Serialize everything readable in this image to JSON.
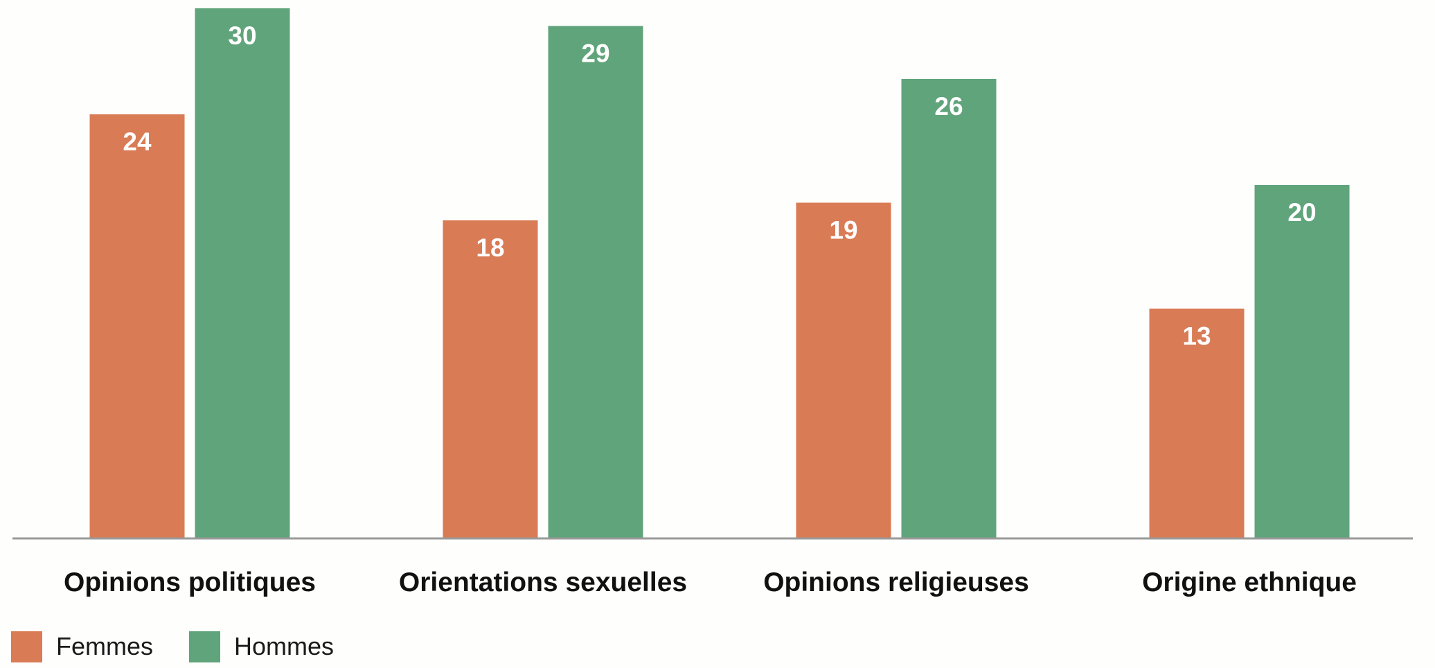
{
  "chart_data": {
    "type": "bar",
    "title": "",
    "xlabel": "",
    "ylabel": "",
    "categories": [
      "Opinions politiques",
      "Orientations sexuelles",
      "Opinions religieuses",
      "Origine ethnique"
    ],
    "series": [
      {
        "name": "Femmes",
        "color": "#d97b55",
        "values": [
          24,
          18,
          19,
          13
        ]
      },
      {
        "name": "Hommes",
        "color": "#60a47b",
        "values": [
          30,
          29,
          26,
          20
        ]
      }
    ],
    "ylim": [
      0,
      30
    ],
    "grid": false,
    "legend_position": "bottom-left",
    "data_labels": true
  }
}
